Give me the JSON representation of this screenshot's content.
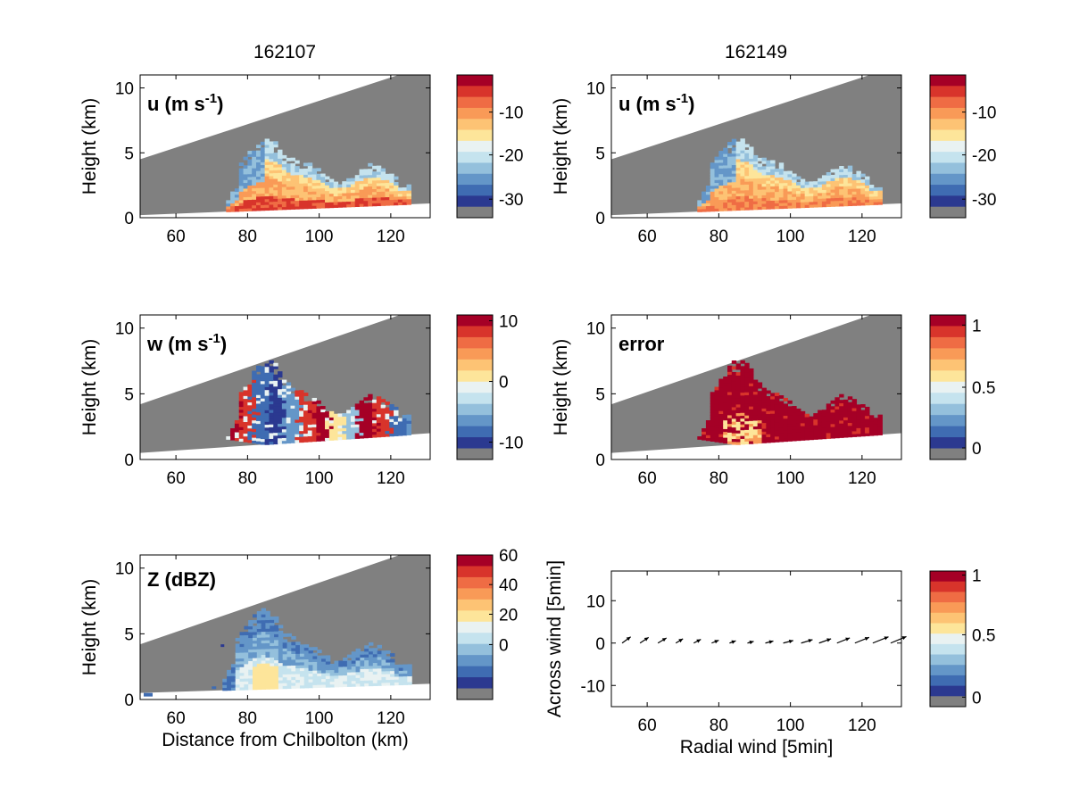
{
  "column_titles": [
    "162107",
    "162149"
  ],
  "colors": {
    "background": "#ffffff",
    "no_data": "#808080",
    "colormap": [
      "#2b3990",
      "#3f6cb2",
      "#6496c8",
      "#94c0dc",
      "#c5e3ee",
      "#e9f2f2",
      "#fde59a",
      "#fdc374",
      "#f99a57",
      "#ef6c44",
      "#d8342b",
      "#a50026"
    ]
  },
  "chart_data": [
    {
      "type": "heatmap",
      "panel": "top-left",
      "label": "u (m s",
      "label_sup": "-1",
      "label_close": ")",
      "ylabel": "Height (km)",
      "xlabel": "",
      "xlim": [
        50,
        131
      ],
      "ylim": [
        0,
        11
      ],
      "xticks": [
        "60",
        "80",
        "100",
        "120"
      ],
      "yticks": [
        "0",
        "5",
        "10"
      ],
      "colorbar_ticks": [
        "-10",
        "-20",
        "-30"
      ],
      "echo_range_km": [
        74,
        125
      ],
      "echo_top_km": 4.5
    },
    {
      "type": "heatmap",
      "panel": "top-right",
      "label": "u (m s",
      "label_sup": "-1",
      "label_close": ")",
      "ylabel": "Height (km)",
      "xlabel": "",
      "xlim": [
        50,
        131
      ],
      "ylim": [
        0,
        11
      ],
      "xticks": [
        "60",
        "80",
        "100",
        "120"
      ],
      "yticks": [
        "0",
        "5",
        "10"
      ],
      "colorbar_ticks": [
        "-10",
        "-20",
        "-30"
      ],
      "echo_range_km": [
        74,
        125
      ],
      "echo_top_km": 4.5
    },
    {
      "type": "heatmap",
      "panel": "middle-left",
      "label": "w (m s",
      "label_sup": "-1",
      "label_close": ")",
      "ylabel": "Height (km)",
      "xlabel": "",
      "xlim": [
        50,
        131
      ],
      "ylim": [
        0,
        11
      ],
      "xticks": [
        "60",
        "80",
        "100",
        "120"
      ],
      "yticks": [
        "0",
        "5",
        "10"
      ],
      "colorbar_ticks": [
        "10",
        "0",
        "-10"
      ],
      "echo_range_km": [
        74,
        125
      ],
      "echo_top_km": 5.5
    },
    {
      "type": "heatmap",
      "panel": "middle-right",
      "label": "error",
      "ylabel": "Height (km)",
      "xlabel": "",
      "xlim": [
        50,
        131
      ],
      "ylim": [
        0,
        11
      ],
      "xticks": [
        "60",
        "80",
        "100",
        "120"
      ],
      "yticks": [
        "0",
        "5",
        "10"
      ],
      "colorbar_ticks": [
        "1",
        "0.5",
        "0"
      ],
      "echo_range_km": [
        74,
        125
      ],
      "echo_top_km": 5.5
    },
    {
      "type": "heatmap",
      "panel": "bottom-left",
      "label": "Z (dBZ)",
      "ylabel": "Height (km)",
      "xlabel": "Distance from Chilbolton (km)",
      "xlim": [
        50,
        131
      ],
      "ylim": [
        0,
        11
      ],
      "xticks": [
        "60",
        "80",
        "100",
        "120"
      ],
      "yticks": [
        "0",
        "5",
        "10"
      ],
      "colorbar_ticks": [
        "60",
        "40",
        "20",
        "0"
      ],
      "echo_range_km": [
        73,
        125
      ],
      "echo_top_km": 5.2
    },
    {
      "type": "scatter",
      "panel": "bottom-right",
      "label": "",
      "ylabel": "Across wind [5min]",
      "xlabel": "Radial wind [5min]",
      "xlim": [
        50,
        131
      ],
      "ylim": [
        -15,
        17
      ],
      "xticks": [
        "60",
        "80",
        "100",
        "120"
      ],
      "yticks": [
        "10",
        "0",
        "-10"
      ],
      "colorbar_ticks": [
        "1",
        "0.5",
        "0"
      ],
      "arrows": {
        "x": [
          53,
          58,
          63,
          68,
          73,
          78,
          83,
          88,
          93,
          98,
          103,
          108,
          113,
          118,
          123,
          128
        ],
        "y": [
          0,
          0,
          0,
          0,
          0,
          0,
          0,
          0,
          0,
          0,
          0,
          0,
          0,
          0,
          0,
          0
        ],
        "u": [
          3,
          3,
          3,
          2.5,
          2.5,
          2.5,
          2.2,
          2.2,
          2.8,
          3.5,
          4,
          4.2,
          4.5,
          5,
          5.5,
          5.5
        ],
        "v": [
          2.2,
          2.0,
          1.8,
          1.5,
          1.3,
          1.0,
          0.8,
          0.6,
          0.7,
          0.9,
          1.2,
          1.5,
          1.8,
          2.0,
          2.2,
          2.3
        ]
      }
    }
  ]
}
